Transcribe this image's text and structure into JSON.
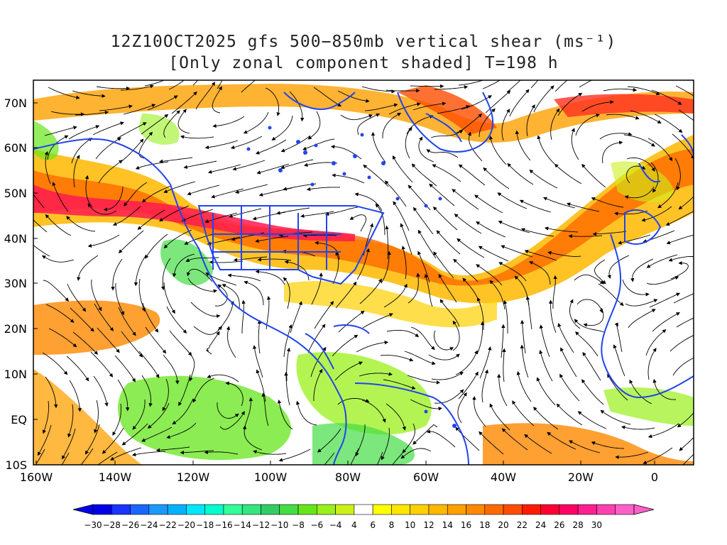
{
  "title": {
    "line1": "12Z10OCT2025 gfs 500−850mb vertical shear (ms⁻¹)",
    "line2": "[Only zonal component shaded] T=198 h"
  },
  "map": {
    "lat_labels": [
      "70N",
      "60N",
      "50N",
      "40N",
      "30N",
      "20N",
      "10N",
      "EQ",
      "10S"
    ],
    "lon_labels": [
      "160W",
      "140W",
      "120W",
      "100W",
      "80W",
      "60W",
      "40W",
      "20W",
      "0"
    ]
  },
  "colorbar": {
    "labels": [
      "−30",
      "−28",
      "−26",
      "−24",
      "−22",
      "−20",
      "−18",
      "−16",
      "−14",
      "−12",
      "−10",
      "−8",
      "−6",
      "−4",
      "4",
      "6",
      "8",
      "10",
      "12",
      "14",
      "16",
      "18",
      "20",
      "22",
      "24",
      "26",
      "28",
      "30"
    ],
    "colors": [
      "#0000e6",
      "#1a33ff",
      "#1a66ff",
      "#1a99ff",
      "#00b2ff",
      "#00e6ff",
      "#00ffcc",
      "#33ff99",
      "#33e680",
      "#33cc66",
      "#44dd44",
      "#66e61a",
      "#99f01a",
      "#ccf01a",
      "#ffffff",
      "#ffff00",
      "#ffe600",
      "#ffd000",
      "#ffb800",
      "#ffa000",
      "#ff8800",
      "#ff6a00",
      "#ff4d00",
      "#ff1a00",
      "#ff0033",
      "#ff0066",
      "#ff2090",
      "#ff40b0",
      "#ff60c8"
    ]
  }
}
